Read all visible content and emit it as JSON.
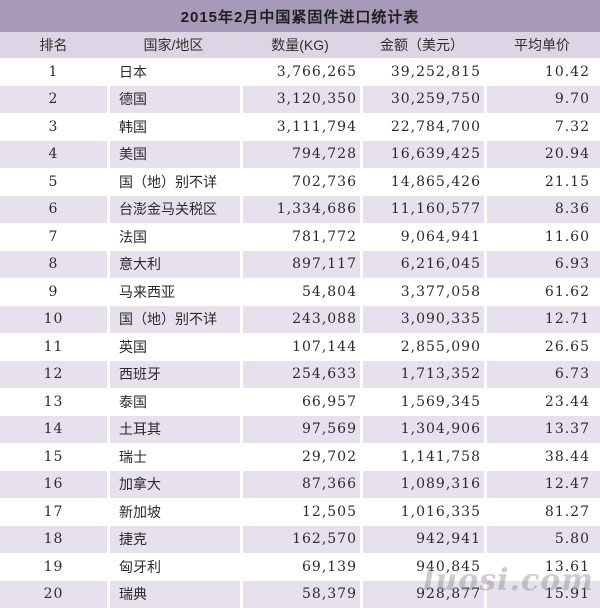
{
  "chart_data": {
    "type": "table",
    "title": "2015年2月中国紧固件进口统计表",
    "columns": [
      "排名",
      "国家/地区",
      "数量(KG)",
      "金额（美元）",
      "平均单价"
    ],
    "rows": [
      [
        "1",
        "日本",
        "3,766,265",
        "39,252,815",
        "10.42"
      ],
      [
        "2",
        "德国",
        "3,120,350",
        "30,259,750",
        "9.70"
      ],
      [
        "3",
        "韩国",
        "3,111,794",
        "22,784,700",
        "7.32"
      ],
      [
        "4",
        "美国",
        "794,728",
        "16,639,425",
        "20.94"
      ],
      [
        "5",
        "国（地）别不详",
        "702,736",
        "14,865,426",
        "21.15"
      ],
      [
        "6",
        "台澎金马关税区",
        "1,334,686",
        "11,160,577",
        "8.36"
      ],
      [
        "7",
        "法国",
        "781,772",
        "9,064,941",
        "11.60"
      ],
      [
        "8",
        "意大利",
        "897,117",
        "6,216,045",
        "6.93"
      ],
      [
        "9",
        "马来西亚",
        "54,804",
        "3,377,058",
        "61.62"
      ],
      [
        "10",
        "国（地）别不详",
        "243,088",
        "3,090,335",
        "12.71"
      ],
      [
        "11",
        "英国",
        "107,144",
        "2,855,090",
        "26.65"
      ],
      [
        "12",
        "西班牙",
        "254,633",
        "1,713,352",
        "6.73"
      ],
      [
        "13",
        "泰国",
        "66,957",
        "1,569,345",
        "23.44"
      ],
      [
        "14",
        "土耳其",
        "97,569",
        "1,304,906",
        "13.37"
      ],
      [
        "15",
        "瑞士",
        "29,702",
        "1,141,758",
        "38.44"
      ],
      [
        "16",
        "加拿大",
        "87,366",
        "1,089,316",
        "12.47"
      ],
      [
        "17",
        "新加坡",
        "12,505",
        "1,016,335",
        "81.27"
      ],
      [
        "18",
        "捷克",
        "162,570",
        "942,941",
        "5.80"
      ],
      [
        "19",
        "匈牙利",
        "69,139",
        "940,845",
        "13.61"
      ],
      [
        "20",
        "瑞典",
        "58,379",
        "928,877",
        "15.91"
      ]
    ]
  },
  "watermark": "luosi.com",
  "colors": {
    "title_bar_bg": "#a79ab8",
    "header_bg": "#dcd6e4",
    "row_bg": "#ffffff",
    "row_alt_bg": "#e6e1ed",
    "separator": "#ffffff",
    "text": "#2b2b2b",
    "watermark_text": "#8f8f8f"
  }
}
